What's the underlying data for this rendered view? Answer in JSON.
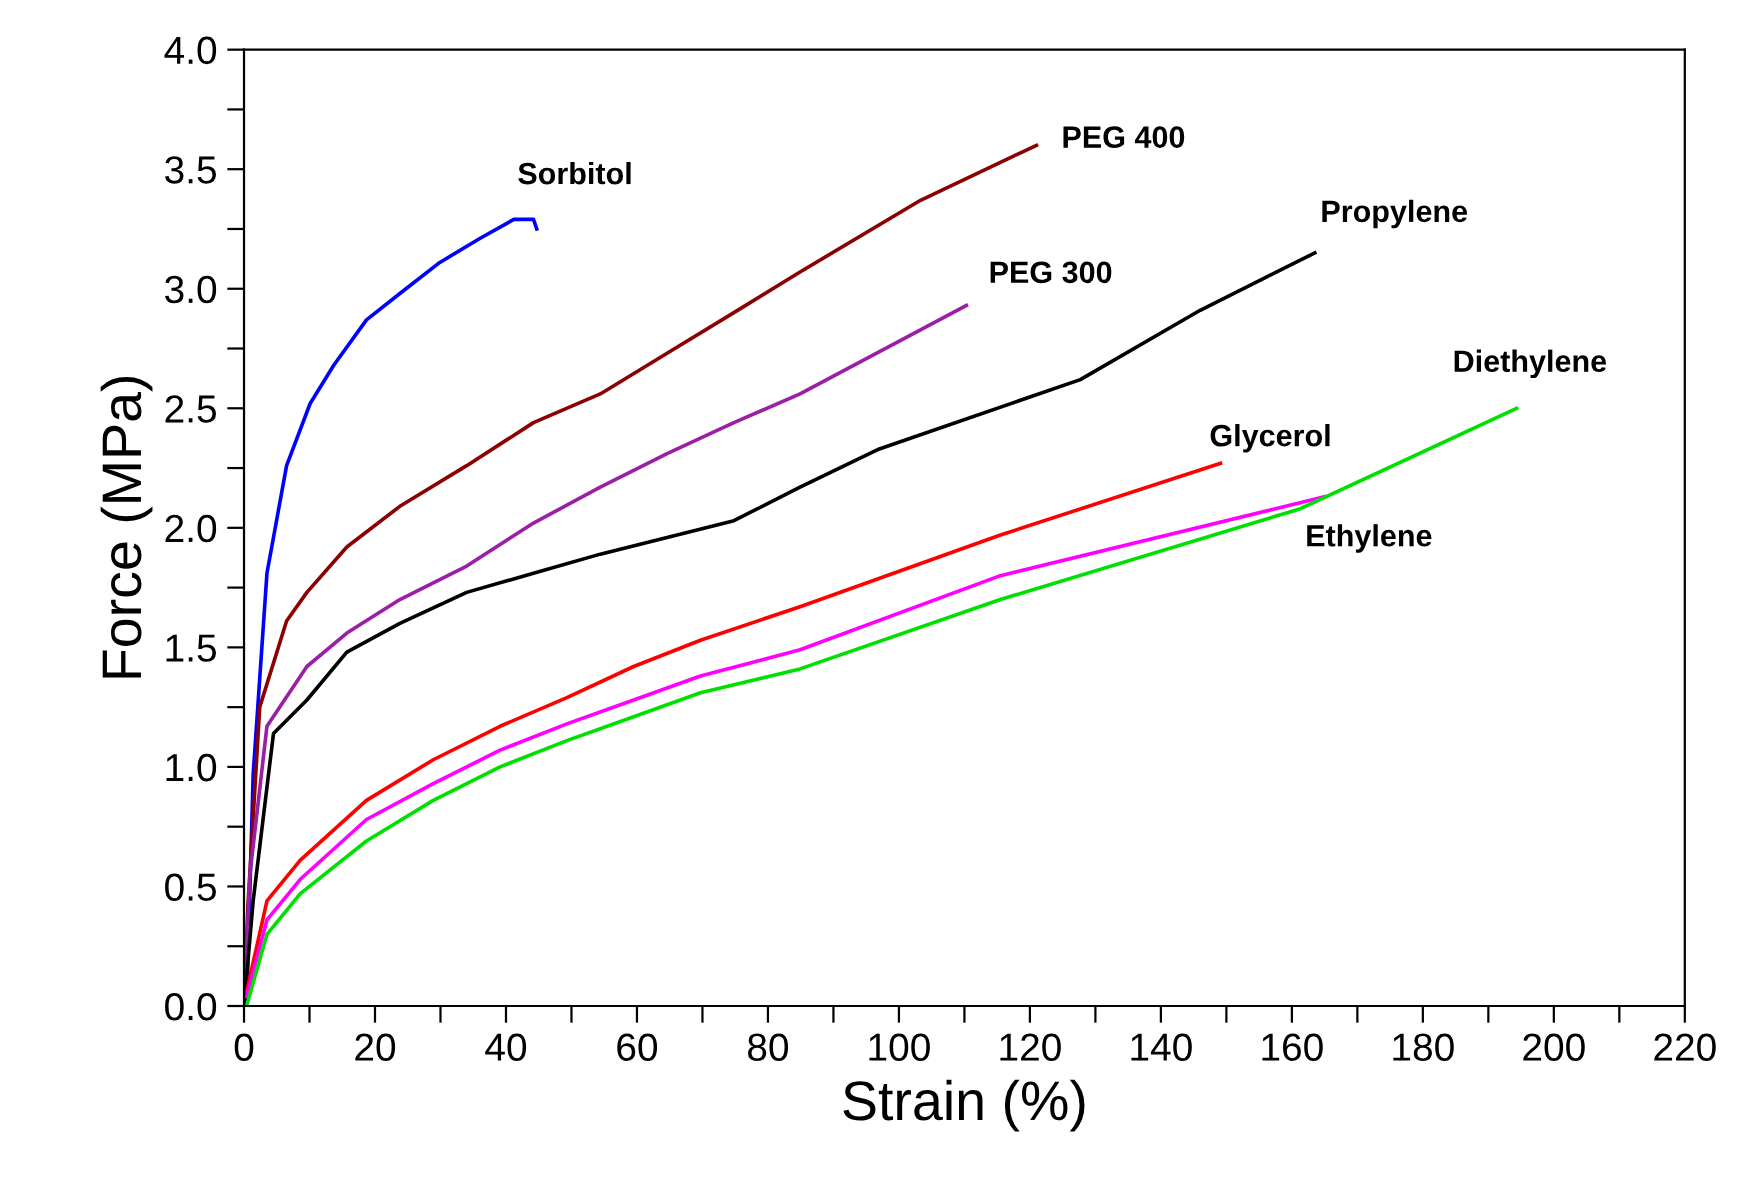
{
  "chart_data": {
    "type": "line",
    "xlabel": "Strain (%)",
    "ylabel": "Force (MPa)",
    "xlim": [
      0,
      220
    ],
    "ylim": [
      0,
      4.0
    ],
    "xticks": [
      0,
      {
        "value": 10,
        "label": null
      },
      20,
      {
        "value": 30,
        "label": null
      },
      40,
      {
        "value": 50,
        "label": null
      },
      60,
      {
        "value": 70,
        "label": null
      },
      80,
      {
        "value": 90,
        "label": null
      },
      100,
      {
        "value": 110,
        "label": null
      },
      120,
      {
        "value": 130,
        "label": null
      },
      140,
      {
        "value": 150,
        "label": null
      },
      160,
      {
        "value": 170,
        "label": null
      },
      180,
      {
        "value": 190,
        "label": null
      },
      200,
      {
        "value": 210,
        "label": null
      },
      220
    ],
    "yticks": [
      {
        "value": 0,
        "label": "0.0"
      },
      {
        "value": 0.25,
        "label": null
      },
      0.5,
      {
        "value": 0.75,
        "label": null
      },
      {
        "value": 1,
        "label": "1.0"
      },
      {
        "value": 1.25,
        "label": null
      },
      1.5,
      {
        "value": 1.75,
        "label": null
      },
      {
        "value": 2,
        "label": "2.0"
      },
      {
        "value": 2.25,
        "label": null
      },
      2.5,
      {
        "value": 2.75,
        "label": null
      },
      {
        "value": 3,
        "label": "3.0"
      },
      {
        "value": 3.25,
        "label": null
      },
      3.5,
      {
        "value": 3.75,
        "label": null
      },
      {
        "value": 4,
        "label": "4.0"
      }
    ],
    "grid": false,
    "legend": false,
    "marker": "none",
    "line_style": "solid",
    "series": [
      {
        "name": "Sorbitol",
        "color": "#0000ff",
        "x": [
          0.4,
          1.4,
          3.5,
          6.5,
          10.1,
          13.7,
          18.7,
          23.8,
          29.9,
          36,
          41.2,
          44.2,
          44.7
        ],
        "values": [
          0,
          0.97,
          1.81,
          2.26,
          2.52,
          2.68,
          2.87,
          2.98,
          3.11,
          3.21,
          3.29,
          3.29,
          3.25
        ]
      },
      {
        "name": "PEG 400",
        "color": "#8b0000",
        "x": [
          0,
          0.6,
          2.4,
          6.5,
          9.6,
          15.7,
          23.8,
          34,
          44.2,
          54.4,
          64.6,
          74.8,
          84.9,
          103.3,
          121
        ],
        "values": [
          0,
          0.42,
          1.25,
          1.61,
          1.73,
          1.92,
          2.09,
          2.26,
          2.44,
          2.56,
          2.73,
          2.9,
          3.07,
          3.37,
          3.6
        ]
      },
      {
        "name": "PEG 300",
        "color": "#9b1fa6",
        "x": [
          0,
          0.9,
          3.5,
          9.6,
          15.7,
          23.8,
          34,
          44.2,
          54.4,
          64.6,
          74.8,
          84.9,
          110.3
        ],
        "values": [
          0,
          0.55,
          1.17,
          1.42,
          1.56,
          1.7,
          1.84,
          2.02,
          2.17,
          2.31,
          2.44,
          2.56,
          2.93
        ]
      },
      {
        "name": "Propylene",
        "color": "#000000",
        "x": [
          0,
          1.4,
          4.5,
          9.6,
          15.7,
          23.8,
          34,
          44.2,
          54.4,
          64.6,
          74.8,
          84.9,
          97,
          127.7,
          146,
          163.5
        ],
        "values": [
          0,
          0.44,
          1.14,
          1.28,
          1.48,
          1.6,
          1.73,
          1.81,
          1.89,
          1.96,
          2.03,
          2.17,
          2.33,
          2.62,
          2.91,
          3.15
        ]
      },
      {
        "name": "Glycerol",
        "color": "#ff0000",
        "x": [
          0.4,
          3.5,
          8.6,
          18.7,
          28.9,
          39.1,
          49.3,
          59.5,
          69.7,
          84.9,
          115.5,
          149.1
        ],
        "values": [
          0.06,
          0.44,
          0.61,
          0.86,
          1.03,
          1.17,
          1.29,
          1.42,
          1.53,
          1.67,
          1.97,
          2.27
        ]
      },
      {
        "name": "Ethylene",
        "color": "#ff00ff",
        "x": [
          0.4,
          3.5,
          8.6,
          18.7,
          28.9,
          39.1,
          49.3,
          59.5,
          69.7,
          84.9,
          115.5,
          165
        ],
        "values": [
          0.04,
          0.36,
          0.53,
          0.78,
          0.93,
          1.07,
          1.18,
          1.28,
          1.38,
          1.49,
          1.8,
          2.13
        ]
      },
      {
        "name": "Diethylene",
        "color": "#00e000",
        "x": [
          0.4,
          3.5,
          8.6,
          18.7,
          28.9,
          39.1,
          49.3,
          59.5,
          69.7,
          84.9,
          115.5,
          161.3,
          194.3
        ],
        "values": [
          0,
          0.3,
          0.47,
          0.69,
          0.86,
          1.0,
          1.11,
          1.21,
          1.31,
          1.41,
          1.7,
          2.08,
          2.5
        ]
      }
    ]
  }
}
